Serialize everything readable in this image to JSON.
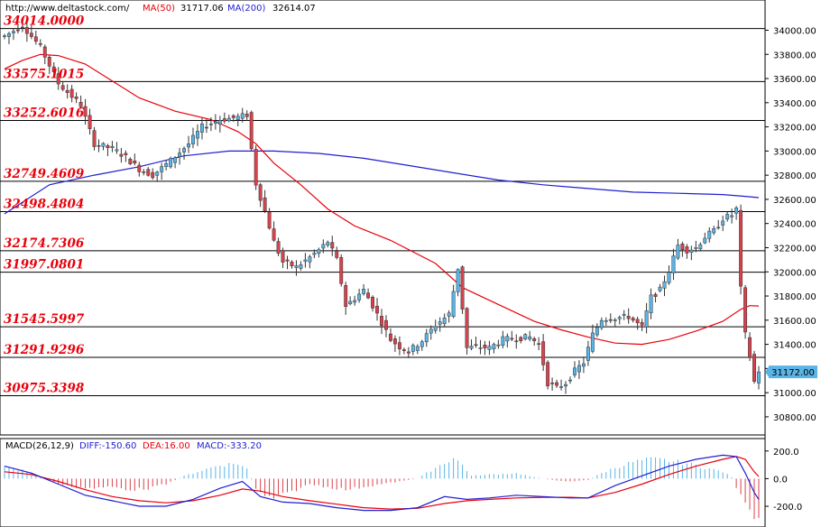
{
  "header": {
    "source": "http://www.deltastock.com/",
    "ma50_label": "MA(50)",
    "ma50_value": "31717.06",
    "ma200_label": "MA(200)",
    "ma200_value": "32614.07"
  },
  "macd_header": {
    "label": "MACD(26,12,9)",
    "diff": "DIFF:-150.60",
    "dea": "DEA:16.00",
    "macd": "MACD:-333.20"
  },
  "colors": {
    "up": "#5ab4e6",
    "down": "#d8424c",
    "ma50": "#e8000b",
    "ma200": "#1e1ed2",
    "level_text": "#e8000b",
    "last_box": "#5ab4e6"
  },
  "chart_data": [
    {
      "type": "candlestick",
      "title": "",
      "ylim": [
        30650,
        34250
      ],
      "y_ticks": [
        "34000.00",
        "33800.00",
        "33600.00",
        "33400.00",
        "33200.00",
        "33000.00",
        "32800.00",
        "32600.00",
        "32400.00",
        "32200.00",
        "32000.00",
        "31800.00",
        "31600.00",
        "31400.00",
        "31200.00",
        "31000.00",
        "30800.00"
      ],
      "last_price": "31172.00",
      "levels": [
        "34014.0000",
        "33575.1015",
        "33252.6016",
        "32749.4609",
        "32498.4804",
        "32174.7306",
        "31997.0801",
        "31545.5997",
        "31291.9296",
        "30975.3398"
      ],
      "waypoints": [
        [
          0,
          33950
        ],
        [
          4,
          34040
        ],
        [
          8,
          33860
        ],
        [
          12,
          33560
        ],
        [
          17,
          33380
        ],
        [
          20,
          33060
        ],
        [
          24,
          33020
        ],
        [
          27,
          32950
        ],
        [
          30,
          32850
        ],
        [
          33,
          32800
        ],
        [
          37,
          32920
        ],
        [
          41,
          33060
        ],
        [
          44,
          33200
        ],
        [
          48,
          33260
        ],
        [
          52,
          33280
        ],
        [
          54,
          33300
        ],
        [
          56,
          32730
        ],
        [
          58,
          32500
        ],
        [
          60,
          32250
        ],
        [
          62,
          32080
        ],
        [
          65,
          32040
        ],
        [
          68,
          32120
        ],
        [
          70,
          32180
        ],
        [
          72,
          32250
        ],
        [
          74,
          32100
        ],
        [
          76,
          31720
        ],
        [
          78,
          31780
        ],
        [
          80,
          31850
        ],
        [
          82,
          31720
        ],
        [
          84,
          31580
        ],
        [
          86,
          31440
        ],
        [
          88,
          31380
        ],
        [
          90,
          31340
        ],
        [
          93,
          31430
        ],
        [
          96,
          31560
        ],
        [
          99,
          31650
        ],
        [
          101,
          32030
        ],
        [
          103,
          31370
        ],
        [
          105,
          31380
        ],
        [
          108,
          31370
        ],
        [
          111,
          31440
        ],
        [
          114,
          31450
        ],
        [
          117,
          31460
        ],
        [
          119,
          31400
        ],
        [
          121,
          31080
        ],
        [
          123,
          31040
        ],
        [
          125,
          31080
        ],
        [
          127,
          31180
        ],
        [
          129,
          31250
        ],
        [
          131,
          31480
        ],
        [
          133,
          31610
        ],
        [
          136,
          31620
        ],
        [
          139,
          31630
        ],
        [
          141,
          31570
        ],
        [
          142,
          31540
        ],
        [
          144,
          31790
        ],
        [
          146,
          31850
        ],
        [
          148,
          32010
        ],
        [
          150,
          32220
        ],
        [
          152,
          32180
        ],
        [
          154,
          32200
        ],
        [
          156,
          32290
        ],
        [
          158,
          32340
        ],
        [
          160,
          32440
        ],
        [
          162,
          32470
        ],
        [
          163,
          32520
        ],
        [
          164,
          31860
        ],
        [
          165,
          31480
        ],
        [
          166,
          31300
        ],
        [
          167,
          31090
        ],
        [
          168,
          31172
        ]
      ],
      "ma50": [
        [
          0,
          33680
        ],
        [
          4,
          33750
        ],
        [
          8,
          33800
        ],
        [
          12,
          33790
        ],
        [
          18,
          33720
        ],
        [
          24,
          33580
        ],
        [
          30,
          33440
        ],
        [
          38,
          33330
        ],
        [
          46,
          33260
        ],
        [
          52,
          33160
        ],
        [
          56,
          33060
        ],
        [
          60,
          32900
        ],
        [
          66,
          32720
        ],
        [
          72,
          32520
        ],
        [
          78,
          32380
        ],
        [
          86,
          32260
        ],
        [
          96,
          32070
        ],
        [
          102,
          31870
        ],
        [
          110,
          31730
        ],
        [
          118,
          31590
        ],
        [
          124,
          31520
        ],
        [
          130,
          31460
        ],
        [
          136,
          31410
        ],
        [
          142,
          31400
        ],
        [
          148,
          31440
        ],
        [
          154,
          31510
        ],
        [
          160,
          31590
        ],
        [
          164,
          31690
        ],
        [
          166,
          31720
        ],
        [
          168,
          31717
        ]
      ],
      "ma200": [
        [
          0,
          32480
        ],
        [
          10,
          32720
        ],
        [
          20,
          32800
        ],
        [
          30,
          32870
        ],
        [
          40,
          32960
        ],
        [
          50,
          33000
        ],
        [
          60,
          33000
        ],
        [
          70,
          32980
        ],
        [
          80,
          32940
        ],
        [
          90,
          32880
        ],
        [
          100,
          32820
        ],
        [
          110,
          32760
        ],
        [
          120,
          32720
        ],
        [
          130,
          32690
        ],
        [
          140,
          32660
        ],
        [
          150,
          32650
        ],
        [
          160,
          32640
        ],
        [
          165,
          32625
        ],
        [
          168,
          32614
        ]
      ]
    },
    {
      "type": "macd",
      "ylim": [
        -350,
        290
      ],
      "y_ticks": [
        "200.0",
        "0.0",
        "-200.0"
      ],
      "diff_value": -150.6,
      "dea_value": 16.0,
      "macd_value": -333.2,
      "diff": [
        [
          0,
          90
        ],
        [
          6,
          40
        ],
        [
          12,
          -40
        ],
        [
          18,
          -120
        ],
        [
          24,
          -160
        ],
        [
          30,
          -200
        ],
        [
          36,
          -200
        ],
        [
          42,
          -150
        ],
        [
          48,
          -70
        ],
        [
          53,
          -20
        ],
        [
          57,
          -130
        ],
        [
          62,
          -170
        ],
        [
          68,
          -180
        ],
        [
          74,
          -210
        ],
        [
          80,
          -230
        ],
        [
          86,
          -230
        ],
        [
          92,
          -210
        ],
        [
          98,
          -130
        ],
        [
          103,
          -150
        ],
        [
          108,
          -140
        ],
        [
          114,
          -120
        ],
        [
          120,
          -130
        ],
        [
          126,
          -140
        ],
        [
          130,
          -140
        ],
        [
          136,
          -50
        ],
        [
          142,
          20
        ],
        [
          148,
          90
        ],
        [
          154,
          140
        ],
        [
          160,
          170
        ],
        [
          163,
          160
        ],
        [
          165,
          40
        ],
        [
          167,
          -100
        ],
        [
          168,
          -150
        ]
      ],
      "dea": [
        [
          0,
          50
        ],
        [
          6,
          30
        ],
        [
          12,
          -20
        ],
        [
          18,
          -80
        ],
        [
          24,
          -130
        ],
        [
          30,
          -160
        ],
        [
          36,
          -175
        ],
        [
          42,
          -160
        ],
        [
          48,
          -120
        ],
        [
          53,
          -75
        ],
        [
          57,
          -90
        ],
        [
          62,
          -130
        ],
        [
          68,
          -160
        ],
        [
          74,
          -185
        ],
        [
          80,
          -210
        ],
        [
          86,
          -220
        ],
        [
          92,
          -215
        ],
        [
          98,
          -180
        ],
        [
          103,
          -160
        ],
        [
          108,
          -150
        ],
        [
          114,
          -140
        ],
        [
          120,
          -135
        ],
        [
          126,
          -135
        ],
        [
          130,
          -140
        ],
        [
          136,
          -100
        ],
        [
          142,
          -40
        ],
        [
          148,
          30
        ],
        [
          154,
          90
        ],
        [
          160,
          140
        ],
        [
          163,
          160
        ],
        [
          165,
          140
        ],
        [
          167,
          50
        ],
        [
          168,
          16
        ]
      ],
      "hist": [
        [
          0,
          80
        ],
        [
          4,
          60
        ],
        [
          8,
          10
        ],
        [
          12,
          -40
        ],
        [
          16,
          -60
        ],
        [
          20,
          -70
        ],
        [
          24,
          -60
        ],
        [
          28,
          -80
        ],
        [
          32,
          -70
        ],
        [
          36,
          -40
        ],
        [
          40,
          20
        ],
        [
          44,
          60
        ],
        [
          48,
          100
        ],
        [
          52,
          110
        ],
        [
          54,
          70
        ],
        [
          56,
          -80
        ],
        [
          58,
          -130
        ],
        [
          60,
          -140
        ],
        [
          62,
          -120
        ],
        [
          65,
          -80
        ],
        [
          68,
          -40
        ],
        [
          72,
          -60
        ],
        [
          76,
          -80
        ],
        [
          80,
          -60
        ],
        [
          84,
          -40
        ],
        [
          88,
          -20
        ],
        [
          92,
          0
        ],
        [
          96,
          80
        ],
        [
          100,
          150
        ],
        [
          102,
          100
        ],
        [
          104,
          20
        ],
        [
          108,
          30
        ],
        [
          114,
          40
        ],
        [
          118,
          10
        ],
        [
          122,
          -10
        ],
        [
          126,
          -20
        ],
        [
          130,
          -10
        ],
        [
          133,
          40
        ],
        [
          136,
          80
        ],
        [
          140,
          120
        ],
        [
          144,
          140
        ],
        [
          148,
          130
        ],
        [
          152,
          110
        ],
        [
          156,
          80
        ],
        [
          160,
          50
        ],
        [
          162,
          10
        ],
        [
          164,
          -130
        ],
        [
          166,
          -250
        ],
        [
          168,
          -333
        ]
      ]
    }
  ]
}
